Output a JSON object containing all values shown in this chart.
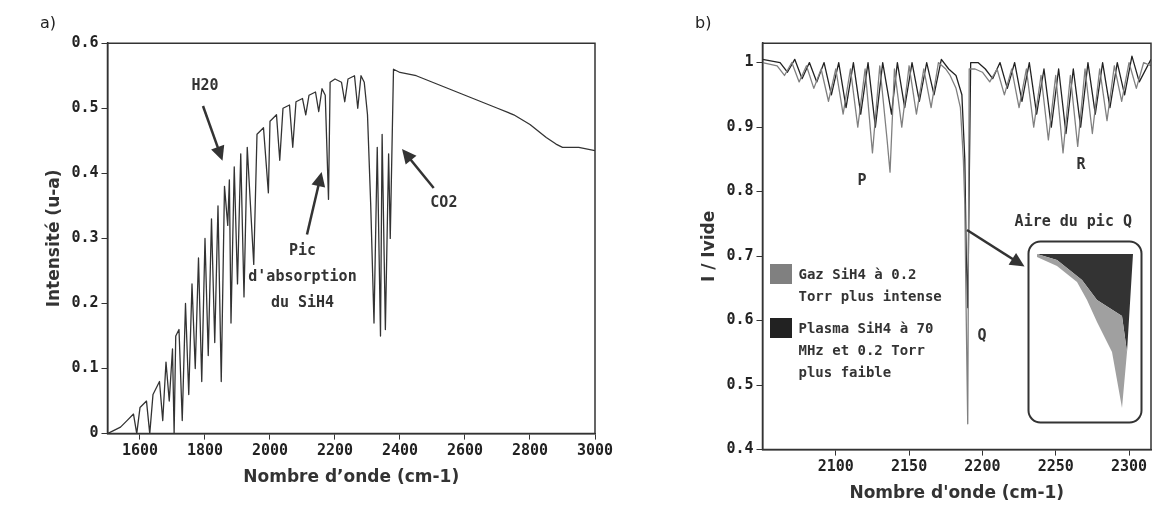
{
  "chart_data": [
    {
      "type": "line",
      "title": "a)",
      "xlabel": "Nombre d’onde (cm-1)",
      "ylabel": "Intensité (u-a)",
      "xlim": [
        1500,
        3000
      ],
      "xticks": [
        1600,
        1800,
        2000,
        2200,
        2400,
        2600,
        2800,
        3000
      ],
      "ylim": [
        0,
        0.6
      ],
      "yticks": [
        0,
        0.1,
        0.2,
        0.3,
        0.4,
        0.5,
        0.6
      ],
      "grid": false,
      "marker": "none",
      "color": "#333333",
      "x": [
        1500,
        1520,
        1540,
        1560,
        1580,
        1590,
        1600,
        1620,
        1630,
        1640,
        1660,
        1670,
        1680,
        1690,
        1700,
        1705,
        1710,
        1720,
        1730,
        1740,
        1750,
        1760,
        1770,
        1780,
        1790,
        1800,
        1810,
        1820,
        1830,
        1840,
        1850,
        1860,
        1870,
        1875,
        1880,
        1890,
        1900,
        1910,
        1920,
        1930,
        1950,
        1960,
        1980,
        1995,
        2000,
        2020,
        2030,
        2040,
        2060,
        2070,
        2080,
        2100,
        2110,
        2120,
        2140,
        2150,
        2160,
        2170,
        2180,
        2185,
        2200,
        2220,
        2230,
        2240,
        2260,
        2270,
        2280,
        2290,
        2300,
        2310,
        2320,
        2330,
        2340,
        2345,
        2355,
        2365,
        2370,
        2380,
        2400,
        2450,
        2500,
        2550,
        2600,
        2650,
        2700,
        2750,
        2800,
        2850,
        2880,
        2900,
        2950,
        3000
      ],
      "values": [
        0,
        0.005,
        0.01,
        0.02,
        0.03,
        0,
        0.04,
        0.05,
        0,
        0.06,
        0.08,
        0.02,
        0.11,
        0.05,
        0.13,
        0,
        0.15,
        0.16,
        0.02,
        0.2,
        0.06,
        0.23,
        0.1,
        0.27,
        0.08,
        0.3,
        0.12,
        0.33,
        0.14,
        0.35,
        0.08,
        0.38,
        0.32,
        0.39,
        0.17,
        0.41,
        0.23,
        0.43,
        0.21,
        0.44,
        0.26,
        0.46,
        0.47,
        0.37,
        0.48,
        0.49,
        0.42,
        0.5,
        0.505,
        0.44,
        0.51,
        0.515,
        0.49,
        0.52,
        0.525,
        0.495,
        0.53,
        0.52,
        0.36,
        0.54,
        0.545,
        0.54,
        0.51,
        0.545,
        0.55,
        0.5,
        0.55,
        0.54,
        0.49,
        0.35,
        0.17,
        0.44,
        0.15,
        0.46,
        0.16,
        0.43,
        0.3,
        0.56,
        0.555,
        0.55,
        0.54,
        0.53,
        0.52,
        0.51,
        0.5,
        0.49,
        0.475,
        0.455,
        0.445,
        0.44,
        0.44,
        0.435
      ],
      "annotations": [
        "H20",
        "Pic d'absorption du SiH4",
        "CO2"
      ]
    },
    {
      "type": "line",
      "title": "b)",
      "xlabel": "Nombre d'onde (cm-1)",
      "ylabel": "I / Ivide",
      "xlim": [
        2050,
        2315
      ],
      "xticks": [
        2100,
        2150,
        2200,
        2250,
        2300
      ],
      "ylim": [
        0.4,
        1.03
      ],
      "yticks": [
        0.4,
        0.5,
        0.6,
        0.7,
        0.8,
        0.9,
        1
      ],
      "grid": false,
      "marker": "none",
      "legend": "bottom left",
      "series": [
        {
          "name": "Gaz SiH4 à 0.2 Torr plus intense",
          "color": "#808080",
          "x": [
            2050,
            2060,
            2065,
            2070,
            2075,
            2080,
            2085,
            2090,
            2095,
            2100,
            2105,
            2110,
            2115,
            2120,
            2125,
            2130,
            2135,
            2137,
            2140,
            2145,
            2150,
            2155,
            2160,
            2165,
            2170,
            2175,
            2178,
            2182,
            2185,
            2187,
            2188,
            2189,
            2190,
            2191,
            2195,
            2200,
            2205,
            2210,
            2215,
            2220,
            2225,
            2230,
            2235,
            2240,
            2245,
            2250,
            2255,
            2260,
            2265,
            2270,
            2275,
            2280,
            2285,
            2290,
            2295,
            2300,
            2305,
            2310,
            2315
          ],
          "values": [
            1,
            0.995,
            0.98,
            1,
            0.97,
            0.995,
            0.96,
            0.99,
            0.94,
            0.99,
            0.92,
            0.99,
            0.9,
            0.99,
            0.86,
            0.995,
            0.88,
            0.83,
            0.99,
            0.9,
            0.995,
            0.92,
            0.99,
            0.93,
            1,
            0.99,
            0.98,
            0.96,
            0.93,
            0.85,
            0.78,
            0.6,
            0.44,
            0.99,
            0.99,
            0.985,
            0.97,
            0.99,
            0.95,
            0.99,
            0.93,
            0.99,
            0.9,
            0.98,
            0.88,
            0.98,
            0.86,
            0.98,
            0.87,
            0.99,
            0.89,
            0.99,
            0.91,
            0.995,
            0.94,
            1,
            0.96,
            1,
            0.995
          ]
        },
        {
          "name": "Plasma SiH4 à 70 MHz et 0.2 Torr plus faible",
          "color": "#222222",
          "x": [
            2050,
            2062,
            2067,
            2072,
            2077,
            2082,
            2087,
            2092,
            2097,
            2102,
            2107,
            2112,
            2117,
            2122,
            2127,
            2132,
            2138,
            2142,
            2147,
            2152,
            2157,
            2162,
            2167,
            2172,
            2177,
            2182,
            2186,
            2188,
            2189,
            2190,
            2192,
            2197,
            2202,
            2207,
            2212,
            2217,
            2222,
            2227,
            2232,
            2237,
            2242,
            2247,
            2252,
            2257,
            2262,
            2267,
            2272,
            2277,
            2282,
            2287,
            2292,
            2297,
            2302,
            2307,
            2315
          ],
          "values": [
            1.005,
            1,
            0.985,
            1.005,
            0.975,
            1,
            0.97,
            1,
            0.95,
            1,
            0.93,
            1,
            0.92,
            1,
            0.9,
            1,
            0.92,
            1,
            0.93,
            1,
            0.94,
            1,
            0.95,
            1.005,
            0.99,
            0.98,
            0.95,
            0.85,
            0.7,
            0.62,
            1,
            1,
            0.99,
            0.975,
            1,
            0.96,
            1,
            0.94,
            1,
            0.92,
            0.99,
            0.9,
            0.99,
            0.89,
            0.99,
            0.9,
            1,
            0.92,
            1,
            0.93,
            1,
            0.95,
            1.01,
            0.97,
            1.005
          ]
        }
      ],
      "annotations": [
        "P",
        "R",
        "Q",
        "Aire du pic Q"
      ]
    }
  ]
}
